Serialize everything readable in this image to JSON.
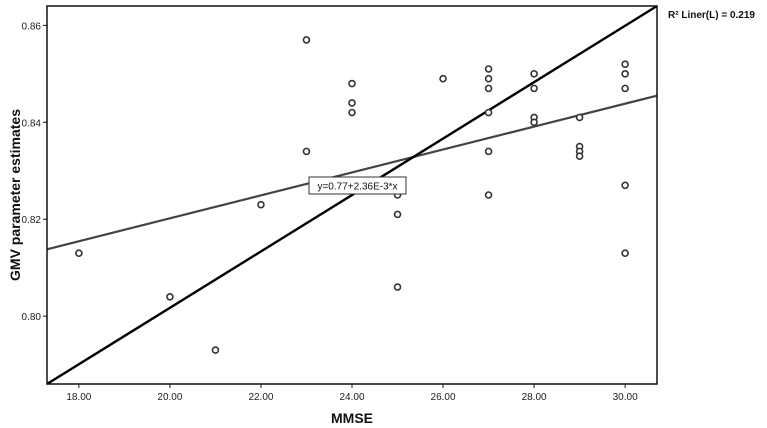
{
  "chart_data": {
    "type": "scatter",
    "xlabel": "MMSE",
    "ylabel": "GMV parameter estimates",
    "xlim": [
      17.3,
      30.7
    ],
    "ylim": [
      0.786,
      0.864
    ],
    "x_ticks": [
      "18.00",
      "20.00",
      "22.00",
      "24.00",
      "26.00",
      "28.00",
      "30.00"
    ],
    "y_ticks": [
      "0.80",
      "0.82",
      "0.84",
      "0.86"
    ],
    "grid": false,
    "legend_text": "R² Liner(L) = 0.219",
    "equation_label": "y=0.77+2.36E-3*x",
    "points": [
      {
        "x": 18,
        "y": 0.813
      },
      {
        "x": 20,
        "y": 0.804
      },
      {
        "x": 21,
        "y": 0.793
      },
      {
        "x": 22,
        "y": 0.823
      },
      {
        "x": 23,
        "y": 0.857
      },
      {
        "x": 23,
        "y": 0.834
      },
      {
        "x": 24,
        "y": 0.848
      },
      {
        "x": 24,
        "y": 0.844
      },
      {
        "x": 24,
        "y": 0.842
      },
      {
        "x": 25,
        "y": 0.825
      },
      {
        "x": 25,
        "y": 0.821
      },
      {
        "x": 25,
        "y": 0.806
      },
      {
        "x": 26,
        "y": 0.849
      },
      {
        "x": 27,
        "y": 0.851
      },
      {
        "x": 27,
        "y": 0.849
      },
      {
        "x": 27,
        "y": 0.847
      },
      {
        "x": 27,
        "y": 0.842
      },
      {
        "x": 27,
        "y": 0.834
      },
      {
        "x": 27,
        "y": 0.825
      },
      {
        "x": 28,
        "y": 0.85
      },
      {
        "x": 28,
        "y": 0.847
      },
      {
        "x": 28,
        "y": 0.841
      },
      {
        "x": 28,
        "y": 0.84
      },
      {
        "x": 29,
        "y": 0.841
      },
      {
        "x": 29,
        "y": 0.835
      },
      {
        "x": 29,
        "y": 0.834
      },
      {
        "x": 29,
        "y": 0.833
      },
      {
        "x": 30,
        "y": 0.852
      },
      {
        "x": 30,
        "y": 0.85
      },
      {
        "x": 30,
        "y": 0.847
      },
      {
        "x": 30,
        "y": 0.827
      },
      {
        "x": 30,
        "y": 0.813
      }
    ],
    "fit_line": {
      "x": [
        17.3,
        30.7
      ],
      "y": [
        0.8138,
        0.8455
      ],
      "color": "#444444"
    },
    "diagonal_line": {
      "x": [
        17.3,
        30.7
      ],
      "y": [
        0.786,
        0.864
      ],
      "color": "#000000"
    }
  }
}
